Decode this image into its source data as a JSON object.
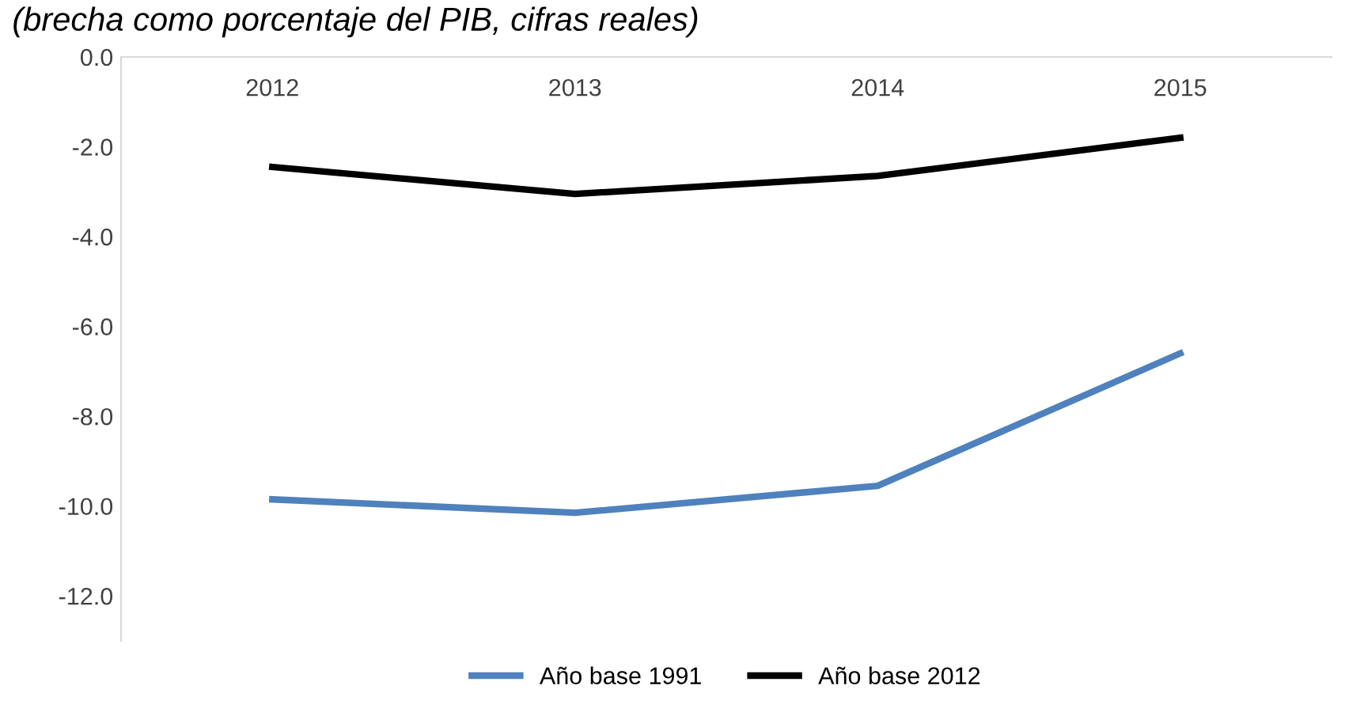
{
  "chart_data": {
    "type": "line",
    "title": "(brecha como porcentaje del PIB, cifras reales)",
    "categories": [
      "2012",
      "2013",
      "2014",
      "2015"
    ],
    "series": [
      {
        "name": "Año base 1991",
        "color": "#4f81bd",
        "values": [
          -9.85,
          -10.15,
          -9.55,
          -6.6
        ]
      },
      {
        "name": "Año base 2012",
        "color": "#000000",
        "values": [
          -2.45,
          -3.05,
          -2.65,
          -1.8
        ]
      }
    ],
    "ylim": [
      -13,
      0
    ],
    "yticks": [
      {
        "value": 0,
        "label": "0.0"
      },
      {
        "value": -2,
        "label": "-2.0"
      },
      {
        "value": -4,
        "label": "-4.0"
      },
      {
        "value": -6,
        "label": "-6.0"
      },
      {
        "value": -8,
        "label": "-8.0"
      },
      {
        "value": -10,
        "label": "-10.0"
      },
      {
        "value": -12,
        "label": "-12.0"
      }
    ],
    "grid": false,
    "legend": "bottom",
    "marker": "none",
    "line_style": "solid"
  }
}
